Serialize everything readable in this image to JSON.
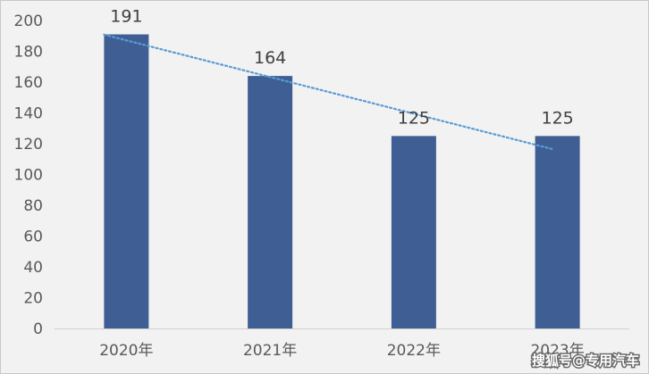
{
  "chart_data": {
    "type": "bar",
    "categories": [
      "2020年",
      "2021年",
      "2022年",
      "2023年"
    ],
    "values": [
      191,
      164,
      125,
      125
    ],
    "data_labels": [
      "191",
      "164",
      "125",
      "125"
    ],
    "ylim": [
      0,
      200
    ],
    "yticks": [
      0,
      20,
      40,
      60,
      80,
      100,
      120,
      140,
      160,
      180,
      200
    ],
    "grid": false,
    "legend": "none",
    "bar_color": "#3f5f94",
    "trendline": {
      "type": "linear",
      "style": "dotted",
      "color": "#5b9bd5"
    }
  },
  "watermark": {
    "text": "搜狐号@专用汽车"
  }
}
